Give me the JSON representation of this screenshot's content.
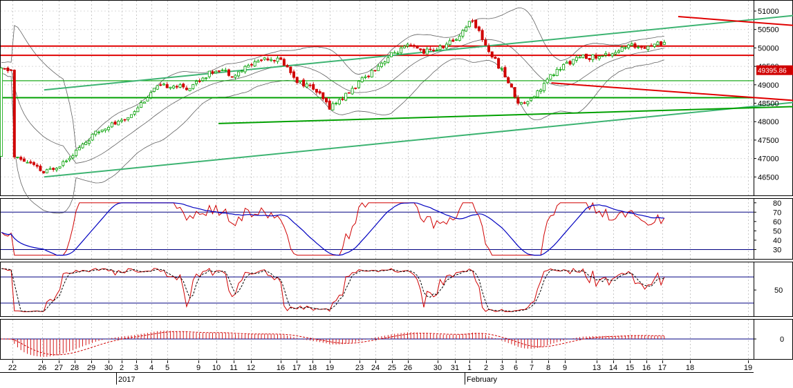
{
  "chart_data": [
    {
      "type": "candlestick",
      "panel": "price",
      "ylim": [
        46000,
        51300
      ],
      "y_ticks": [
        "46500",
        "47000",
        "47500",
        "48000",
        "48500",
        "49000",
        "49500",
        "50000",
        "50500",
        "51000"
      ],
      "last_price_label": "49395.86",
      "colors": {
        "up": "#00a000",
        "down": "#d00000",
        "bands": "#606060",
        "last_price_bg": "#d00000"
      },
      "horizontal_levels": [
        {
          "value": 50050,
          "color": "#e00000"
        },
        {
          "value": 49800,
          "color": "#e00000"
        },
        {
          "value": 49110,
          "color": "#00a000"
        },
        {
          "value": 48650,
          "color": "#00a000"
        }
      ],
      "trendlines": [
        {
          "from": [
            2,
            48860
          ],
          "to": [
            61,
            51380
          ],
          "color": "#3cb371"
        },
        {
          "from": [
            2,
            46500
          ],
          "to": [
            71,
            49450
          ],
          "color": "#3cb371"
        },
        {
          "from": [
            13,
            47950
          ],
          "to": [
            74,
            48720
          ],
          "color": "#00a000"
        },
        {
          "from": [
            42,
            50850
          ],
          "to": [
            67,
            50030
          ],
          "color": "#e00000"
        },
        {
          "from": [
            34,
            49050
          ],
          "to": [
            63,
            48150
          ],
          "color": "#e00000"
        },
        {
          "from": [
            61,
            50300
          ],
          "to": [
            70,
            48750
          ],
          "color": "#e00000"
        }
      ]
    },
    {
      "type": "line",
      "panel": "rsi",
      "ylim": [
        20,
        85
      ],
      "y_ticks": [
        "30",
        "40",
        "50",
        "60",
        "70",
        "80"
      ],
      "levels": [
        30,
        70
      ],
      "colors": {
        "main": "#d00000",
        "signal": "#0000c0",
        "levels": "#000080"
      }
    },
    {
      "type": "line",
      "panel": "stochastic",
      "ylim": [
        -10,
        115
      ],
      "y_ticks": [
        "50"
      ],
      "levels": [
        20,
        80
      ],
      "colors": {
        "k": "#d00000",
        "d": "#000000",
        "levels": "#000080"
      }
    },
    {
      "type": "bar",
      "panel": "macd",
      "ylim": [
        -1,
        1
      ],
      "y_ticks": [
        "0"
      ],
      "colors": {
        "bars": "#d00000",
        "signal": "#d00000",
        "zero": "#000080"
      }
    }
  ],
  "x_axis": {
    "day_labels": [
      "22",
      "26",
      "27",
      "28",
      "29",
      "30",
      "2",
      "3",
      "4",
      "5",
      "9",
      "10",
      "11",
      "12",
      "16",
      "17",
      "18",
      "19",
      "23",
      "24",
      "25",
      "26",
      "30",
      "31",
      "1",
      "2",
      "3",
      "6",
      "7",
      "8",
      "9",
      "13",
      "14",
      "15",
      "16",
      "17",
      "18",
      "19"
    ],
    "month_labels": [
      "2017",
      "February"
    ]
  }
}
